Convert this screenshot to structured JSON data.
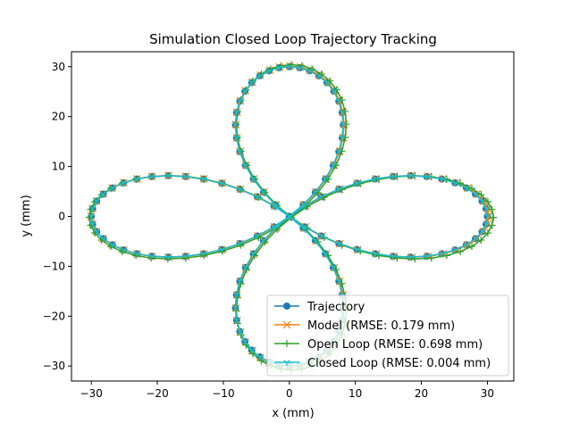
{
  "chart_data": {
    "type": "line",
    "title": "Simulation Closed Loop Trajectory Tracking",
    "xlabel": "x (mm)",
    "ylabel": "y (mm)",
    "xlim": [
      -33,
      34
    ],
    "ylim": [
      -33,
      33
    ],
    "xticks": [
      -30,
      -20,
      -10,
      0,
      10,
      20,
      30
    ],
    "yticks": [
      -30,
      -20,
      -10,
      0,
      10,
      20,
      30
    ],
    "grid": false,
    "legend_position": "bottom-right",
    "curve": {
      "family": "rose",
      "equation": "r = 30 cos(2 theta)",
      "theta_range_deg": [
        0,
        360
      ],
      "points": 120
    },
    "series": [
      {
        "name": "Trajectory",
        "marker": "circle",
        "color": "#1f77b4",
        "offset_xy": [
          0,
          0
        ],
        "scale": 1.0
      },
      {
        "name": "Model (RMSE: 0.179 mm)",
        "marker": "x",
        "color": "#ff7f0e",
        "offset_xy": [
          0.1,
          0.0
        ],
        "scale": 1.004
      },
      {
        "name": "Open Loop (RMSE: 0.698 mm)",
        "marker": "plus",
        "color": "#2ca02c",
        "offset_xy": [
          0.3,
          -0.2
        ],
        "scale": 1.02
      },
      {
        "name": "Closed Loop (RMSE: 0.004 mm)",
        "marker": "tri_up",
        "color": "#17becf",
        "offset_xy": [
          0,
          0
        ],
        "scale": 1.0
      }
    ]
  }
}
